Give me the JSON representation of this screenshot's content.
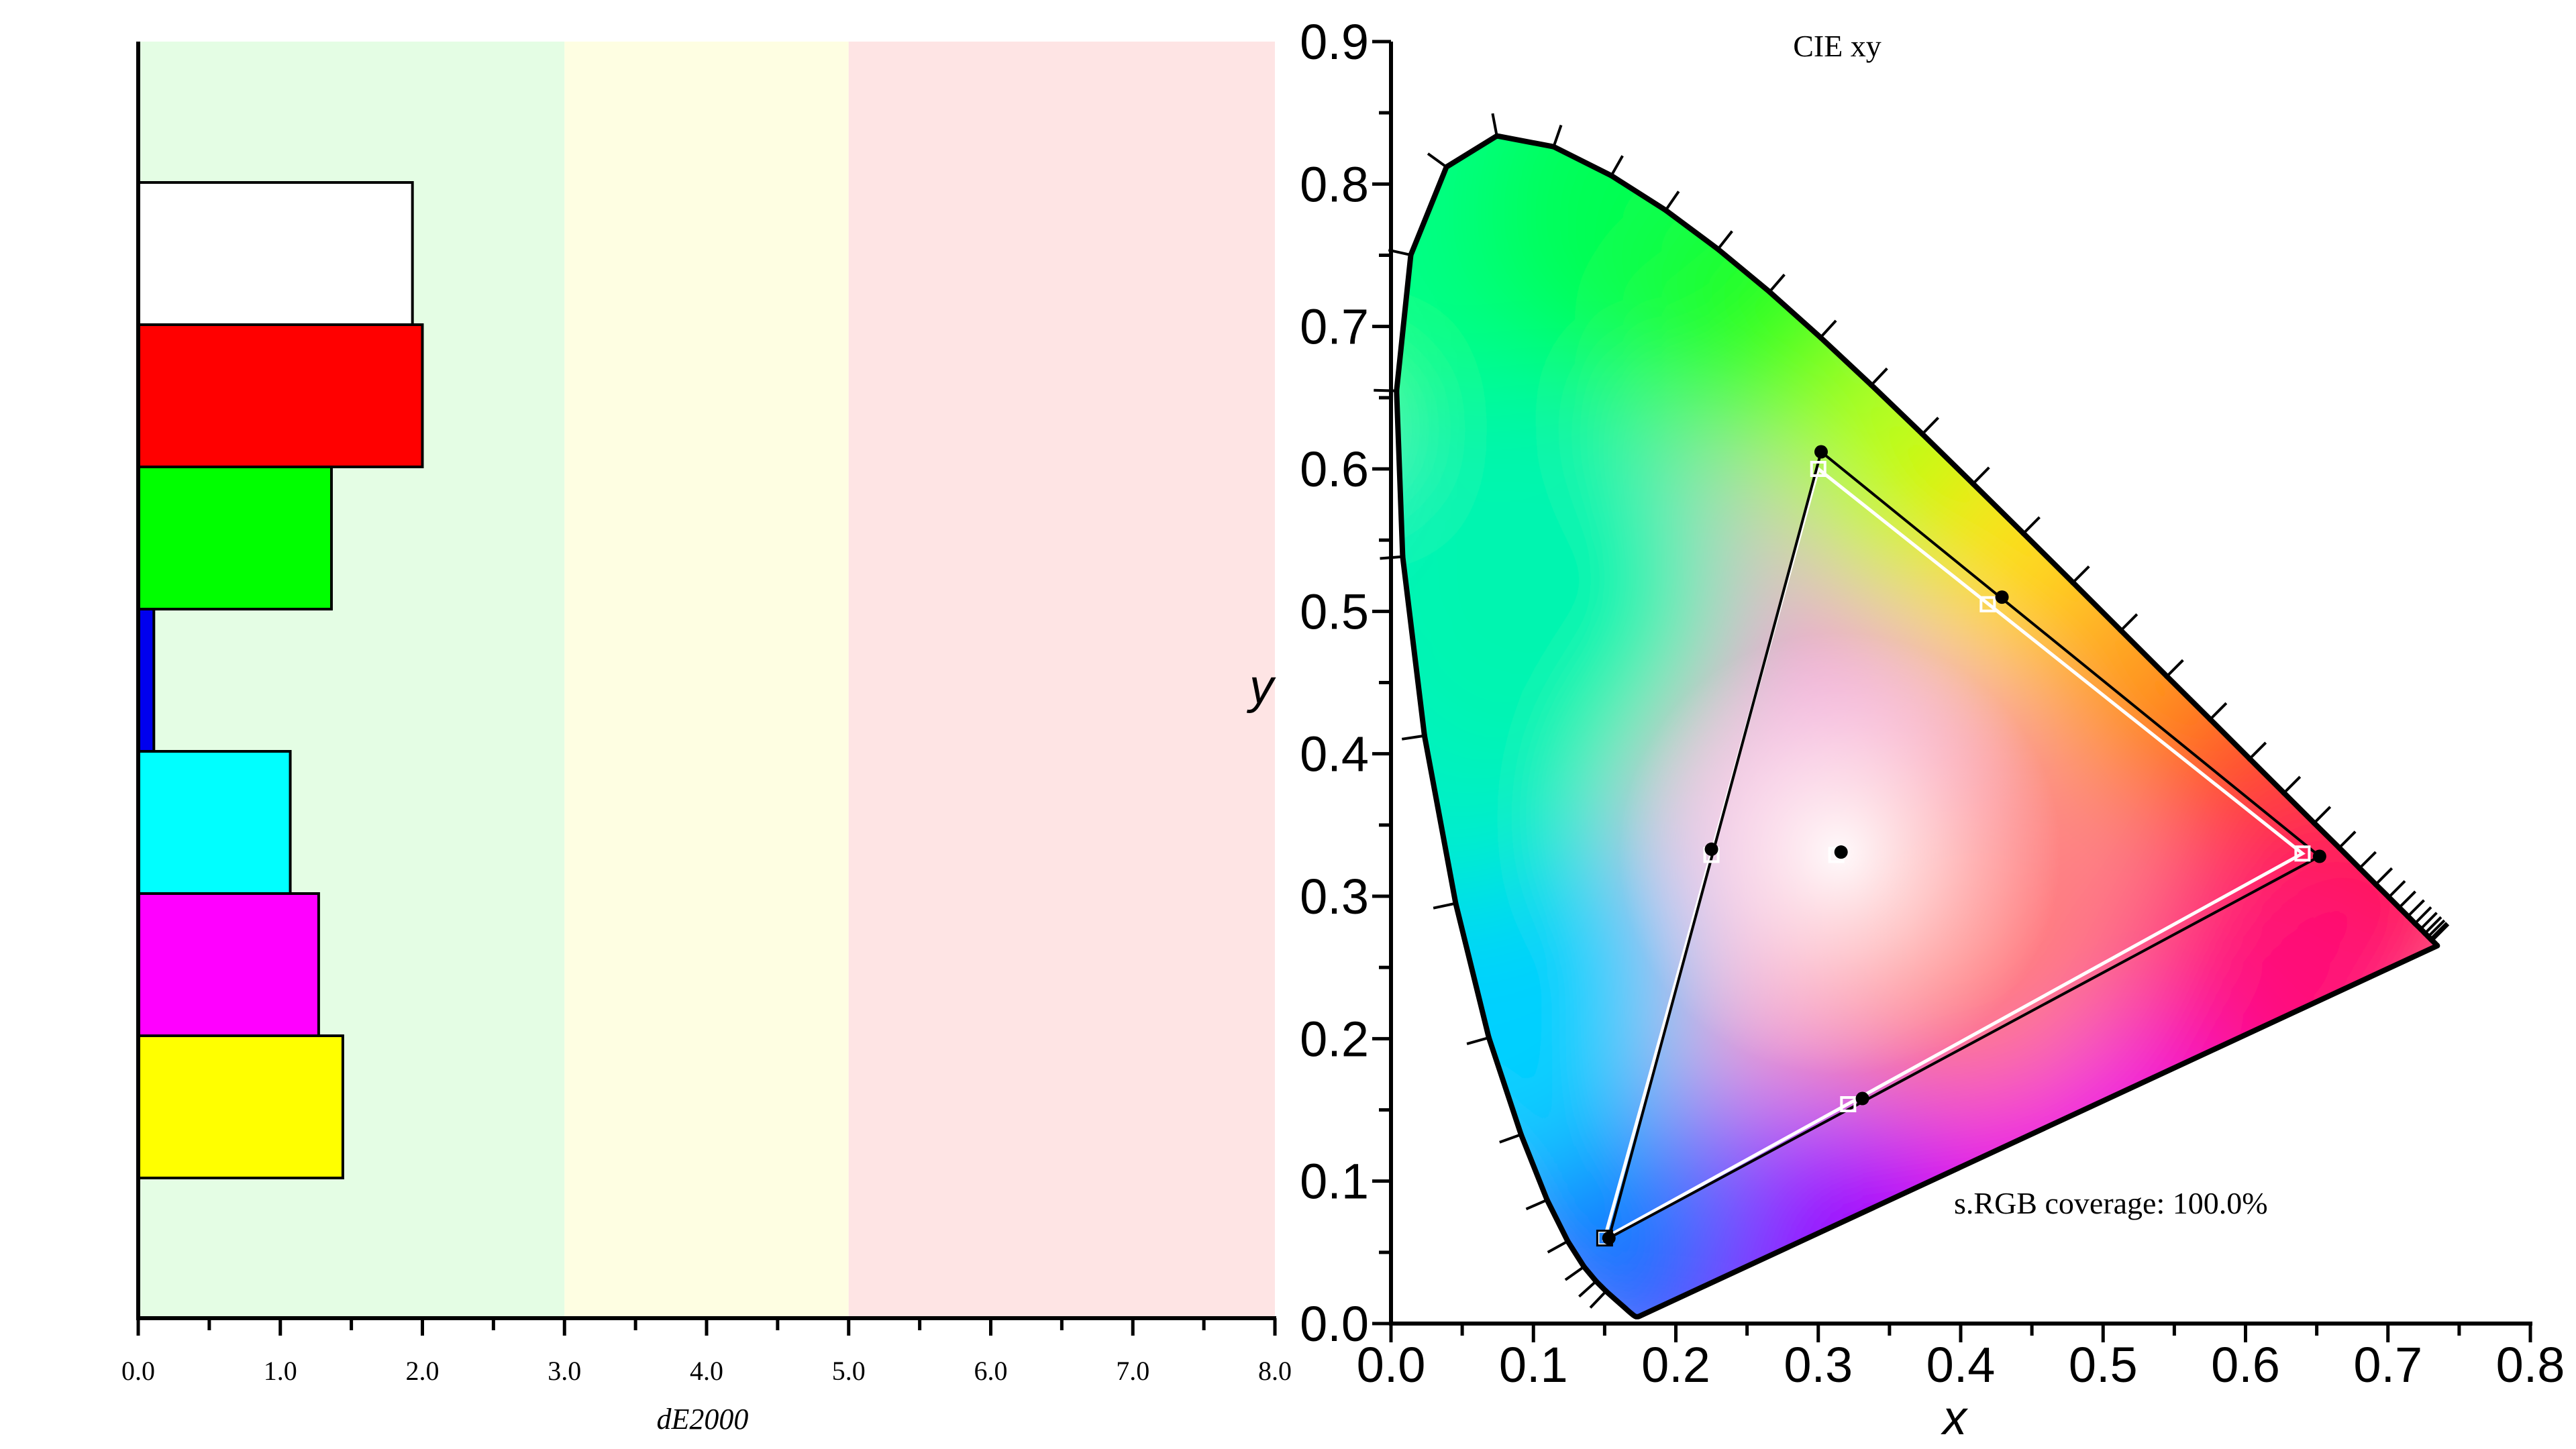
{
  "chart_data": [
    {
      "type": "bar",
      "orientation": "horizontal",
      "xlabel": "dE2000",
      "xlim": [
        0,
        8
      ],
      "x_ticks": [
        "0.0",
        "1.0",
        "2.0",
        "3.0",
        "4.0",
        "5.0",
        "6.0",
        "7.0",
        "8.0"
      ],
      "bands": [
        {
          "from": 0,
          "to": 3,
          "color": "#e4fde4"
        },
        {
          "from": 3,
          "to": 5,
          "color": "#fefee2"
        },
        {
          "from": 5,
          "to": 8,
          "color": "#fee4e4"
        }
      ],
      "bars": [
        {
          "color": "#ffffff",
          "value": 1.93
        },
        {
          "color": "#ff0000",
          "value": 2.0
        },
        {
          "color": "#00ff00",
          "value": 1.36
        },
        {
          "color": "#0000ee",
          "value": 0.11
        },
        {
          "color": "#00ffff",
          "value": 1.07
        },
        {
          "color": "#ff00ff",
          "value": 1.27
        },
        {
          "color": "#ffff00",
          "value": 1.44
        }
      ]
    },
    {
      "type": "scatter",
      "title": "CIE xy",
      "xlabel": "x",
      "ylabel": "y",
      "xlim": [
        0,
        0.8
      ],
      "ylim": [
        0,
        0.9
      ],
      "x_ticks": [
        "0.0",
        "0.1",
        "0.2",
        "0.3",
        "0.4",
        "0.5",
        "0.6",
        "0.7",
        "0.8"
      ],
      "y_ticks": [
        "0.0",
        "0.1",
        "0.2",
        "0.3",
        "0.4",
        "0.5",
        "0.6",
        "0.7",
        "0.8",
        "0.9"
      ],
      "annotation": "s.RGB coverage: 100.0%",
      "measured_gamut": [
        [
          0.652,
          0.328
        ],
        [
          0.302,
          0.612
        ],
        [
          0.153,
          0.06
        ]
      ],
      "reference_gamut": [
        [
          0.64,
          0.33
        ],
        [
          0.3,
          0.6
        ],
        [
          0.15,
          0.06
        ]
      ],
      "measured_points": [
        [
          0.429,
          0.51
        ],
        [
          0.225,
          0.333
        ],
        [
          0.331,
          0.158
        ],
        [
          0.316,
          0.331
        ]
      ],
      "reference_points": [
        [
          0.419,
          0.505
        ],
        [
          0.225,
          0.329
        ],
        [
          0.321,
          0.154
        ],
        [
          0.3127,
          0.329
        ]
      ]
    }
  ]
}
